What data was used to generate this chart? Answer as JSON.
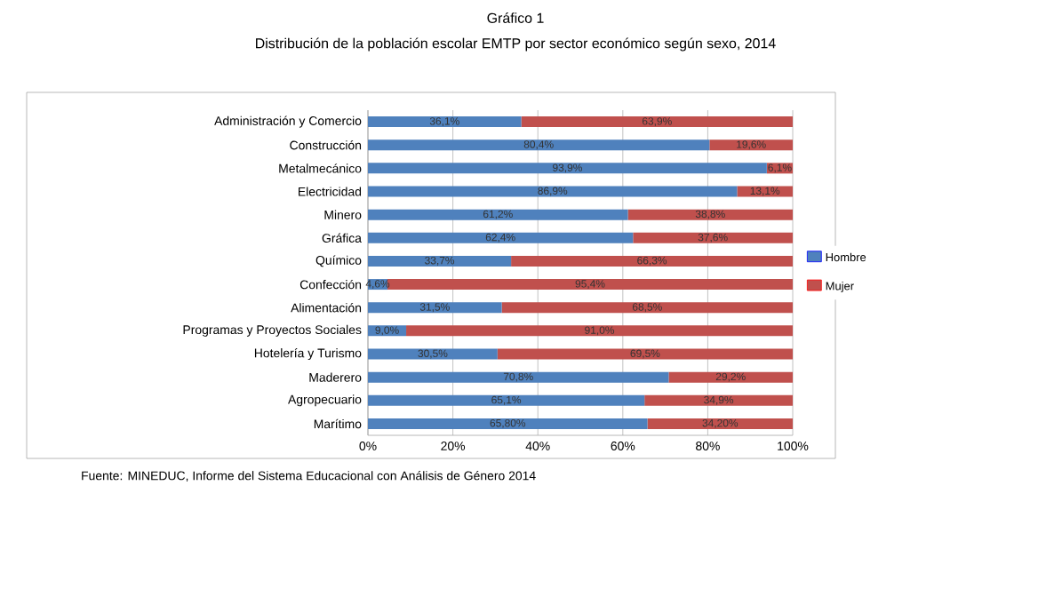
{
  "chart_data": {
    "type": "bar",
    "orientation": "horizontal",
    "stacked": true,
    "title": "Gráfico 1",
    "subtitle": "Distribución de la población escolar EMTP por sector económico según sexo, 2014",
    "categories": [
      "Administración y Comercio",
      "Construcción",
      "Metalmecánico",
      "Electricidad",
      "Minero",
      "Gráfica",
      "Químico",
      "Confección",
      "Alimentación",
      "Programas y Proyectos Sociales",
      "Hotelería y Turismo",
      "Maderero",
      "Agropecuario",
      "Marítimo"
    ],
    "series": [
      {
        "name": "Hombre",
        "color": "#4f81bd",
        "values": [
          36.1,
          80.4,
          93.9,
          86.9,
          61.2,
          62.4,
          33.7,
          4.6,
          31.5,
          9.0,
          30.5,
          70.8,
          65.1,
          65.8
        ],
        "value_labels": [
          "36,1%",
          "80,4%",
          "93,9%",
          "86,9%",
          "61,2%",
          "62,4%",
          "33,7%",
          "4,6%",
          "31,5%",
          "9,0%",
          "30,5%",
          "70,8%",
          "65,1%",
          "65,80%"
        ]
      },
      {
        "name": "Mujer",
        "color": "#c0504d",
        "values": [
          63.9,
          19.6,
          6.1,
          13.1,
          38.8,
          37.6,
          66.3,
          95.4,
          68.5,
          91.0,
          69.5,
          29.2,
          34.9,
          34.2
        ],
        "value_labels": [
          "63,9%",
          "19,6%",
          "6,1%",
          "13,1%",
          "38,8%",
          "37,6%",
          "66,3%",
          "95,4%",
          "68,5%",
          "91,0%",
          "69,5%",
          "29,2%",
          "34,9%",
          "34,20%"
        ]
      }
    ],
    "xlim": [
      0,
      100
    ],
    "xticks": [
      {
        "value": 0,
        "label": "0%"
      },
      {
        "value": 20,
        "label": "20%"
      },
      {
        "value": 40,
        "label": "40%"
      },
      {
        "value": 60,
        "label": "60%"
      },
      {
        "value": 80,
        "label": "80%"
      },
      {
        "value": 100,
        "label": "100%"
      }
    ],
    "grid": "x",
    "legend": "right",
    "annotations": [
      "Fuente: MINEDUC, Informe del Sistema Educacional con Análisis de Género 2014"
    ]
  }
}
